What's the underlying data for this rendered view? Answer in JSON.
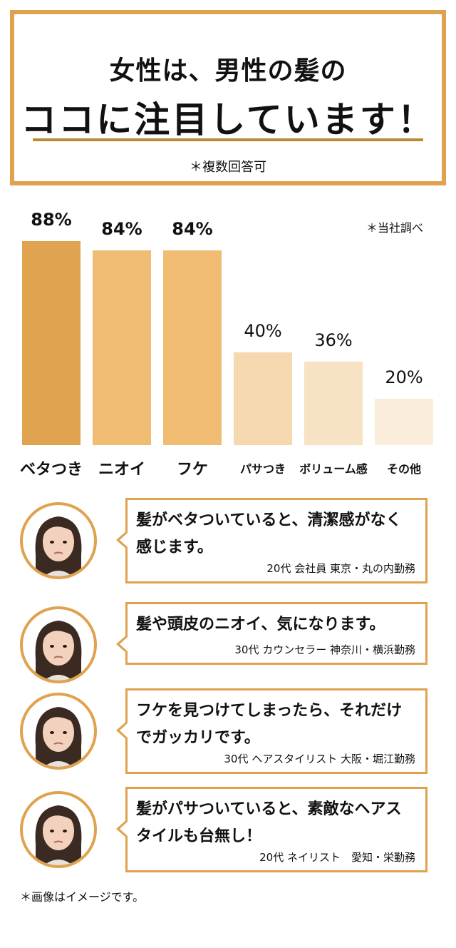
{
  "header": {
    "line1": "女性は、男性の髪の",
    "line2": "ココに注目しています！",
    "note": "＊複数回答可"
  },
  "chart_data": {
    "type": "bar",
    "note": "＊当社調べ",
    "categories": [
      "ベタつき",
      "ニオイ",
      "フケ",
      "パサつき",
      "ボリューム感",
      "その他"
    ],
    "values": [
      88,
      84,
      84,
      40,
      36,
      20
    ],
    "value_labels": [
      "88%",
      "84%",
      "84%",
      "40%",
      "36%",
      "20%"
    ],
    "colors": [
      "#E0A450",
      "#F0BC73",
      "#F0BC73",
      "#F5D7B0",
      "#F8E2C4",
      "#FAEDDC"
    ],
    "ylim": [
      0,
      100
    ]
  },
  "voices": [
    {
      "quote": "髪がベタついていると、清潔感がなく感じます。",
      "who": "20代 会社員 東京・丸の内勤務",
      "avatar_icon": "woman-face-icon"
    },
    {
      "quote": "髪や頭皮のニオイ、気になります。",
      "who": "30代 カウンセラー 神奈川・横浜勤務",
      "avatar_icon": "woman-face-icon"
    },
    {
      "quote": "フケを見つけてしまったら、それだけでガッカリです。",
      "who": "30代 ヘアスタイリスト 大阪・堀江勤務",
      "avatar_icon": "woman-face-icon"
    },
    {
      "quote": "髪がパサついていると、素敵なヘアスタイルも台無し！",
      "who": "20代 ネイリスト　愛知・栄勤務",
      "avatar_icon": "woman-face-icon"
    }
  ],
  "footer_note": "＊画像はイメージです。"
}
